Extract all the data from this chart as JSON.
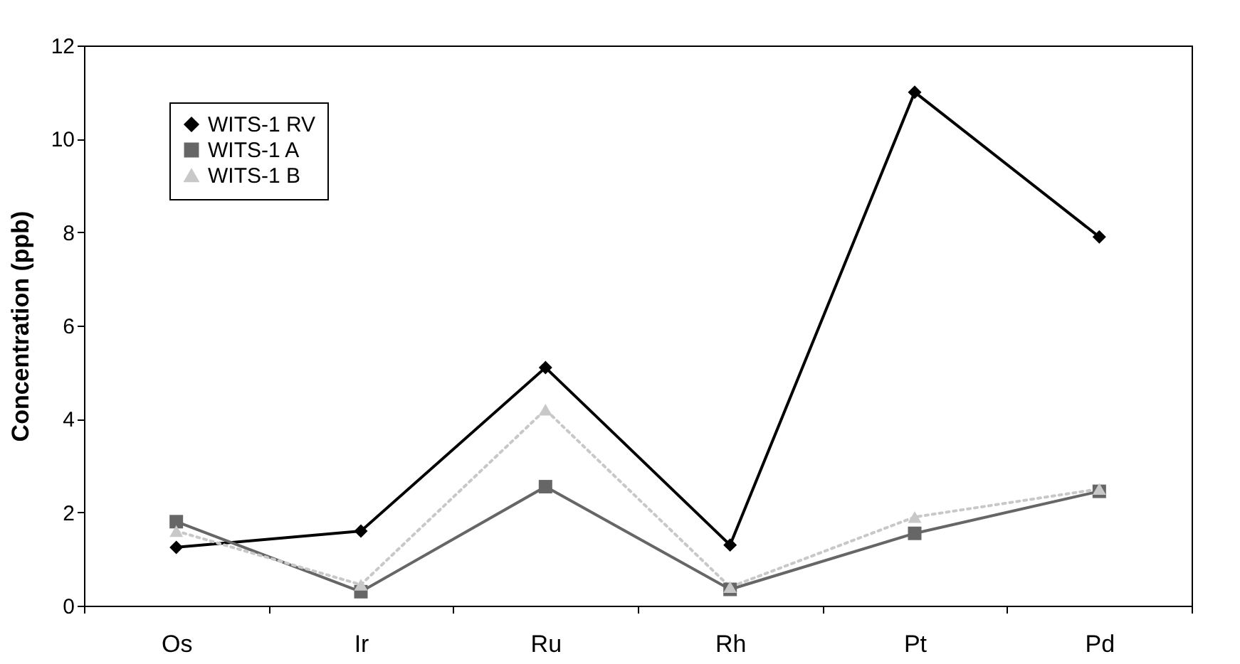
{
  "chart_data": {
    "type": "line",
    "ylabel": "Concentration (ppb)",
    "categories": [
      "Os",
      "Ir",
      "Ru",
      "Rh",
      "Pt",
      "Pd"
    ],
    "series": [
      {
        "name": "WITS-1 RV",
        "color": "#000000",
        "marker": "diamond",
        "line_style": "solid",
        "values": [
          1.25,
          1.6,
          5.1,
          1.3,
          11.0,
          7.9
        ]
      },
      {
        "name": "WITS-1 A",
        "color": "#666666",
        "marker": "square",
        "line_style": "solid",
        "values": [
          1.8,
          0.3,
          2.55,
          0.35,
          1.55,
          2.45
        ]
      },
      {
        "name": "WITS-1 B",
        "color": "#c8c8c8",
        "marker": "triangle",
        "line_style": "dotted",
        "values": [
          1.6,
          0.45,
          4.2,
          0.4,
          1.9,
          2.5
        ]
      }
    ],
    "ylim": [
      0,
      12
    ],
    "yticks": [
      0,
      2,
      4,
      6,
      8,
      10,
      12
    ],
    "grid": false,
    "legend": "top left"
  }
}
